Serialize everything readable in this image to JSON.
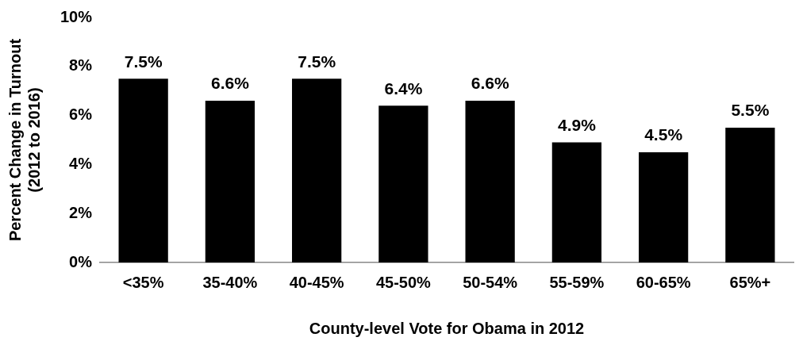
{
  "chart_data": {
    "type": "bar",
    "categories": [
      "<35%",
      "35-40%",
      "40-45%",
      "45-50%",
      "50-54%",
      "55-59%",
      "60-65%",
      "65%+"
    ],
    "values": [
      7.5,
      6.6,
      7.5,
      6.4,
      6.6,
      4.9,
      4.5,
      5.5
    ],
    "value_labels": [
      "7.5%",
      "6.6%",
      "7.5%",
      "6.4%",
      "6.6%",
      "4.9%",
      "4.5%",
      "5.5%"
    ],
    "color": "#000000",
    "xlabel": "County-level Vote for Obama in 2012",
    "ylabel": "Percent Change in Turnout\n(2012 to 2016)",
    "ylim": [
      0,
      10
    ],
    "yticks": [
      {
        "value": 0,
        "label": "0%"
      },
      {
        "value": 2,
        "label": "2%"
      },
      {
        "value": 4,
        "label": "4%"
      },
      {
        "value": 6,
        "label": "6%"
      },
      {
        "value": 8,
        "label": "8%"
      },
      {
        "value": 10,
        "label": "10%"
      }
    ],
    "grid": false,
    "legend": false
  }
}
